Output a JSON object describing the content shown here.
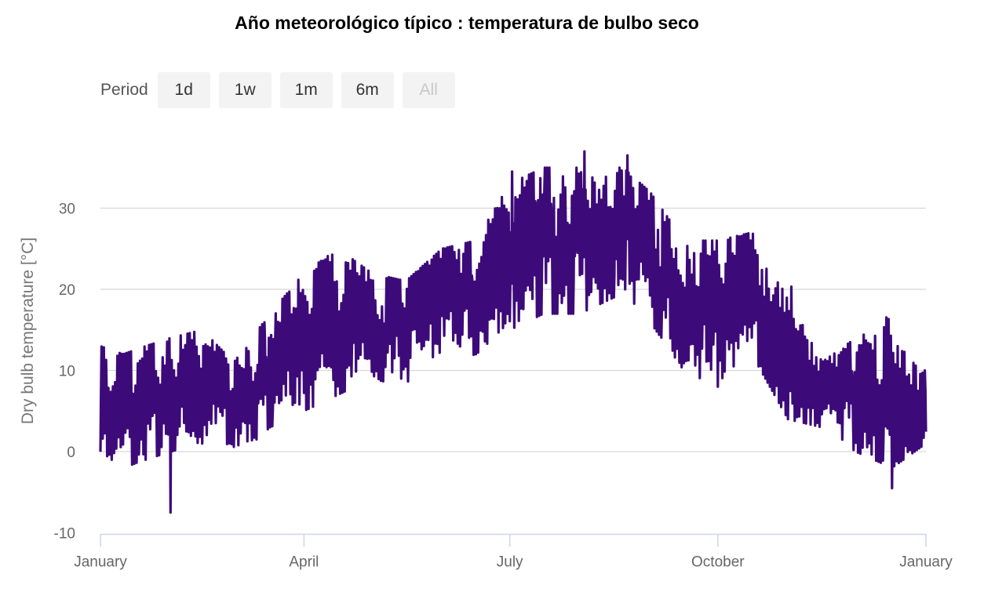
{
  "chart_data": {
    "type": "line",
    "title": "Año meteorológico típico : temperatura de bulbo seco",
    "ylabel": "Dry bulb temperature [°C]",
    "xlabel": "",
    "ylim": [
      -10,
      37
    ],
    "yticks": [
      -10,
      0,
      10,
      20,
      30
    ],
    "ytick_labels": [
      "-10",
      "0",
      "10",
      "20",
      "30"
    ],
    "xlim_days": [
      0,
      365
    ],
    "xticks": [
      {
        "day": 0,
        "label": "January"
      },
      {
        "day": 90,
        "label": "April"
      },
      {
        "day": 181,
        "label": "July"
      },
      {
        "day": 273,
        "label": "October"
      },
      {
        "day": 365,
        "label": "January"
      }
    ],
    "grid": true,
    "legend": false,
    "color": "#3d0a7a",
    "series": [
      {
        "name": "Dry bulb temperature",
        "envelope_days": [
          0,
          10,
          20,
          31,
          45,
          59,
          75,
          90,
          105,
          120,
          135,
          151,
          166,
          181,
          196,
          212,
          227,
          243,
          258,
          273,
          288,
          304,
          319,
          334,
          350,
          365
        ],
        "envelope_low": [
          -2,
          -2,
          -1,
          0,
          1,
          -1,
          3,
          5,
          7,
          9,
          8,
          11,
          12,
          15,
          17,
          17,
          19,
          16,
          10,
          8,
          12,
          4,
          3,
          0,
          -2,
          1
        ],
        "envelope_high": [
          13,
          12,
          13,
          14,
          15,
          11,
          17,
          22,
          25,
          22,
          21,
          25,
          26,
          33,
          35,
          35,
          36,
          32,
          26,
          26,
          27,
          22,
          11,
          14,
          17,
          11
        ],
        "notable_extremes": [
          {
            "day": 31,
            "value": -7.5
          },
          {
            "day": 182,
            "value": 34.5
          },
          {
            "day": 214,
            "value": 37.0
          },
          {
            "day": 233,
            "value": 36.5
          },
          {
            "day": 350,
            "value": -4.5
          }
        ]
      }
    ]
  },
  "range_selector": {
    "label": "Period",
    "buttons": [
      {
        "label": "1d",
        "disabled": false
      },
      {
        "label": "1w",
        "disabled": false
      },
      {
        "label": "1m",
        "disabled": false
      },
      {
        "label": "6m",
        "disabled": false
      },
      {
        "label": "All",
        "disabled": true
      }
    ]
  }
}
